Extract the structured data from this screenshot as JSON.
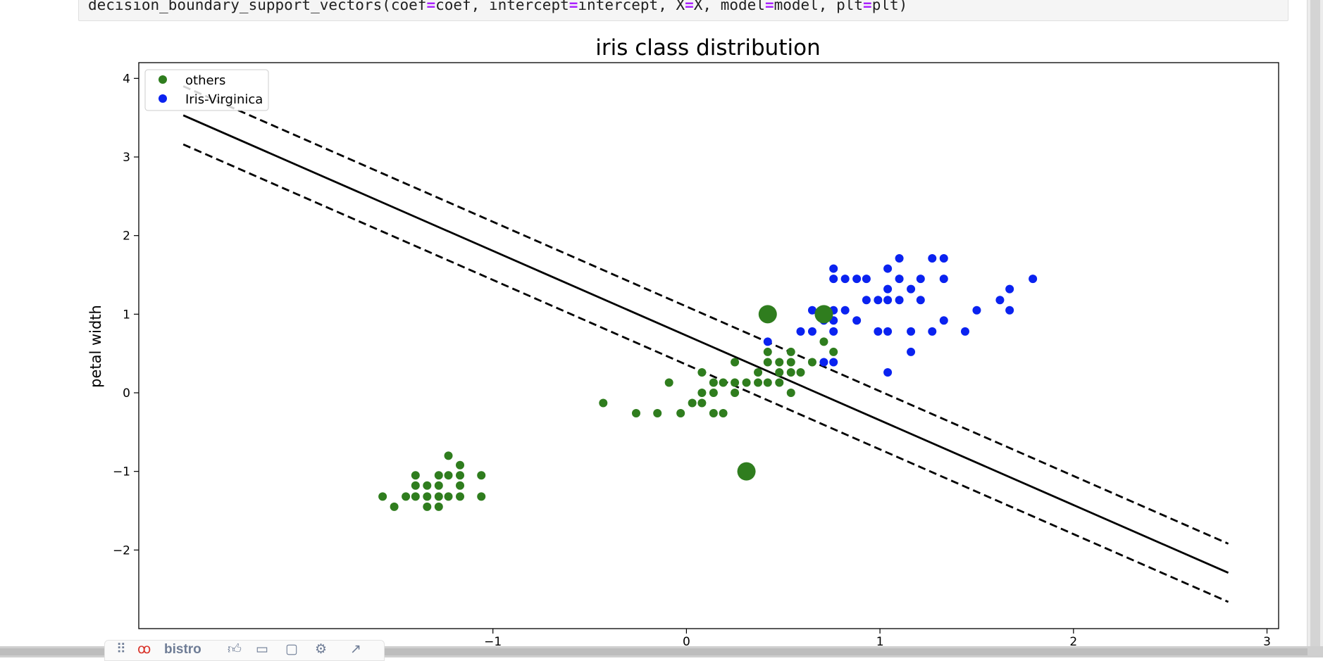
{
  "code": {
    "line_before_1": "decision_boundary_support_vectors(coef",
    "op1": "=",
    "line_between_1_2": "coef, intercept",
    "op2": "=",
    "line_between_2_3": "intercept, X",
    "op3": "=",
    "line_between_3_4": "X, model",
    "op4": "=",
    "line_between_4_5": "model, plt",
    "op5": "=",
    "line_after_5": "plt)"
  },
  "toolbar": {
    "drag_icon": "drag-handle-icon",
    "logo_icon": "bistro-logo-icon",
    "label": "bistro",
    "icons": [
      "thumbs-up-icon",
      "comment-icon",
      "bookmark-icon",
      "settings-icon",
      "expand-icon"
    ]
  },
  "colors": {
    "others": "#2f7d1e",
    "virginica": "#0a22f0",
    "boundary": "#000000",
    "code_operator": "#aa22ff"
  },
  "chart_data": {
    "type": "scatter",
    "title": "iris class distribution",
    "xlabel": "",
    "ylabel": "petal width",
    "xlim": [
      -2.83,
      3.06
    ],
    "ylim": [
      -3.0,
      4.2
    ],
    "xticks": [
      -1,
      0,
      1,
      2,
      3
    ],
    "yticks": [
      -2,
      -1,
      0,
      1,
      2,
      3,
      4
    ],
    "xtick_labels": [
      "−1",
      "0",
      "1",
      "2",
      "3"
    ],
    "ytick_labels": [
      "−2",
      "−1",
      "0",
      "1",
      "2",
      "3",
      "4"
    ],
    "grid": false,
    "legend": {
      "position": "upper-left",
      "entries": [
        {
          "label": "others",
          "marker": "circle",
          "color": "#2f7d1e"
        },
        {
          "label": "Iris-Virginica",
          "marker": "circle",
          "color": "#0a22f0"
        }
      ]
    },
    "lines": [
      {
        "name": "decision boundary",
        "style": "solid",
        "x": [
          -2.6,
          2.8
        ],
        "y": [
          3.53,
          -2.29
        ]
      },
      {
        "name": "upper margin",
        "style": "dashed",
        "x": [
          -2.6,
          2.8
        ],
        "y": [
          3.9,
          -1.92
        ]
      },
      {
        "name": "lower margin",
        "style": "dashed",
        "x": [
          -2.6,
          2.8
        ],
        "y": [
          3.16,
          -2.66
        ]
      }
    ],
    "series": [
      {
        "name": "others",
        "color": "#2f7d1e",
        "points": [
          [
            -1.57,
            -1.32
          ],
          [
            -1.51,
            -1.45
          ],
          [
            -1.45,
            -1.32
          ],
          [
            -1.4,
            -1.05
          ],
          [
            -1.4,
            -1.18
          ],
          [
            -1.4,
            -1.32
          ],
          [
            -1.34,
            -1.18
          ],
          [
            -1.34,
            -1.32
          ],
          [
            -1.34,
            -1.45
          ],
          [
            -1.28,
            -1.05
          ],
          [
            -1.28,
            -1.18
          ],
          [
            -1.28,
            -1.32
          ],
          [
            -1.28,
            -1.45
          ],
          [
            -1.23,
            -0.8
          ],
          [
            -1.23,
            -1.05
          ],
          [
            -1.23,
            -1.32
          ],
          [
            -1.17,
            -0.92
          ],
          [
            -1.17,
            -1.05
          ],
          [
            -1.17,
            -1.18
          ],
          [
            -1.17,
            -1.32
          ],
          [
            -1.06,
            -1.05
          ],
          [
            -1.06,
            -1.32
          ],
          [
            -0.43,
            -0.13
          ],
          [
            -0.26,
            -0.26
          ],
          [
            -0.15,
            -0.26
          ],
          [
            -0.09,
            0.13
          ],
          [
            -0.03,
            -0.26
          ],
          [
            0.03,
            -0.13
          ],
          [
            0.08,
            0.26
          ],
          [
            0.08,
            0.0
          ],
          [
            0.08,
            -0.13
          ],
          [
            0.14,
            0.13
          ],
          [
            0.14,
            0.0
          ],
          [
            0.14,
            -0.26
          ],
          [
            0.19,
            0.13
          ],
          [
            0.19,
            -0.26
          ],
          [
            0.25,
            0.39
          ],
          [
            0.25,
            0.13
          ],
          [
            0.25,
            0.0
          ],
          [
            0.31,
            0.13
          ],
          [
            0.37,
            0.26
          ],
          [
            0.37,
            0.13
          ],
          [
            0.42,
            0.52
          ],
          [
            0.42,
            0.39
          ],
          [
            0.42,
            0.13
          ],
          [
            0.48,
            0.39
          ],
          [
            0.48,
            0.26
          ],
          [
            0.48,
            0.13
          ],
          [
            0.54,
            0.52
          ],
          [
            0.54,
            0.39
          ],
          [
            0.54,
            0.26
          ],
          [
            0.54,
            0.0
          ],
          [
            0.59,
            0.26
          ],
          [
            0.65,
            0.39
          ],
          [
            0.71,
            0.65
          ],
          [
            0.76,
            0.52
          ]
        ]
      },
      {
        "name": "Iris-Virginica",
        "color": "#0a22f0",
        "points": [
          [
            0.42,
            0.65
          ],
          [
            0.59,
            0.78
          ],
          [
            0.65,
            1.05
          ],
          [
            0.65,
            0.78
          ],
          [
            0.71,
            1.05
          ],
          [
            0.71,
            0.92
          ],
          [
            0.71,
            0.39
          ],
          [
            0.76,
            1.58
          ],
          [
            0.76,
            1.45
          ],
          [
            0.76,
            1.05
          ],
          [
            0.76,
            0.92
          ],
          [
            0.76,
            0.78
          ],
          [
            0.76,
            0.39
          ],
          [
            0.82,
            1.45
          ],
          [
            0.82,
            1.05
          ],
          [
            0.88,
            1.45
          ],
          [
            0.88,
            0.92
          ],
          [
            0.93,
            1.45
          ],
          [
            0.93,
            1.18
          ],
          [
            0.99,
            1.18
          ],
          [
            0.99,
            0.78
          ],
          [
            1.04,
            1.58
          ],
          [
            1.04,
            1.32
          ],
          [
            1.04,
            1.18
          ],
          [
            1.04,
            0.78
          ],
          [
            1.04,
            0.26
          ],
          [
            1.1,
            1.71
          ],
          [
            1.1,
            1.45
          ],
          [
            1.1,
            1.18
          ],
          [
            1.16,
            1.32
          ],
          [
            1.16,
            0.78
          ],
          [
            1.16,
            0.52
          ],
          [
            1.21,
            1.45
          ],
          [
            1.21,
            1.18
          ],
          [
            1.27,
            1.71
          ],
          [
            1.27,
            0.78
          ],
          [
            1.33,
            1.71
          ],
          [
            1.33,
            1.45
          ],
          [
            1.33,
            0.92
          ],
          [
            1.44,
            0.78
          ],
          [
            1.5,
            1.05
          ],
          [
            1.62,
            1.18
          ],
          [
            1.67,
            1.32
          ],
          [
            1.67,
            1.05
          ],
          [
            1.79,
            1.45
          ]
        ]
      },
      {
        "name": "support vectors",
        "color": "#2f7d1e",
        "size": "large",
        "points": [
          [
            0.42,
            1.0
          ],
          [
            0.31,
            -1.0
          ],
          [
            0.71,
            1.0
          ]
        ]
      }
    ]
  }
}
